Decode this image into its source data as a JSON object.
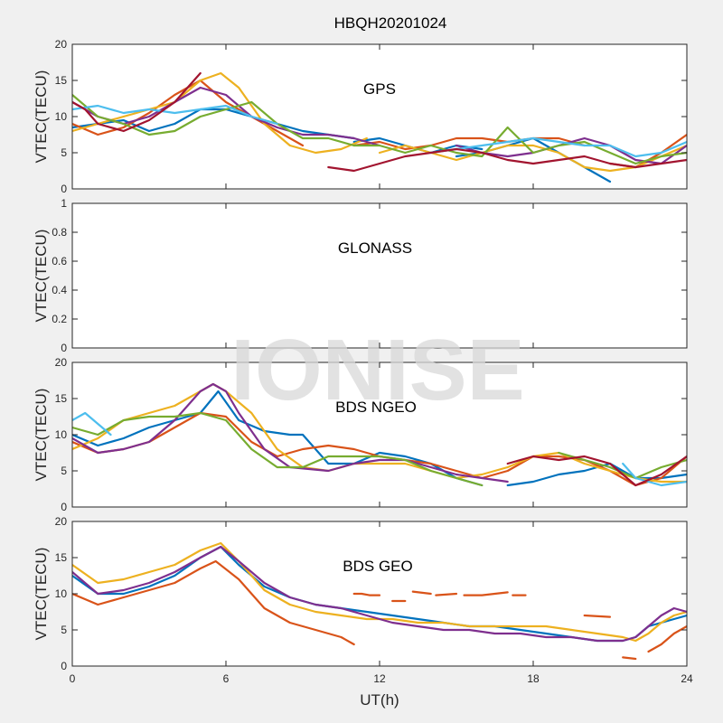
{
  "figure": {
    "title": "HBQH20201024",
    "xlabel": "UT(h)",
    "watermark": "IONISE",
    "colors": {
      "background": "#f0f0f0",
      "axes_bg": "#ffffff",
      "axis_line": "#262626",
      "series_palette": [
        "#0072bd",
        "#d95319",
        "#edb120",
        "#7e2f8e",
        "#77ac30",
        "#4dbeee",
        "#a2142f"
      ]
    }
  },
  "chart_data": [
    {
      "type": "line",
      "panel_label": "GPS",
      "ylabel": "VTEC(TECU)",
      "xlim": [
        0,
        24
      ],
      "ylim": [
        0,
        20
      ],
      "xticks": [
        0,
        6,
        12,
        18,
        24
      ],
      "yticks": [
        0,
        5,
        10,
        15,
        20
      ],
      "show_xtick_labels": false,
      "grid": false,
      "series": [
        {
          "color": "#0072bd",
          "x": [
            0,
            1,
            2,
            3,
            4,
            5,
            6,
            7,
            8,
            9,
            10,
            11
          ],
          "y": [
            8.5,
            9,
            9.5,
            8,
            9,
            11,
            11,
            10,
            9,
            8,
            7.5,
            7
          ]
        },
        {
          "color": "#0072bd",
          "x": [
            11,
            12,
            13,
            14,
            15,
            16
          ],
          "y": [
            6.5,
            7,
            6,
            5,
            6,
            5.5
          ]
        },
        {
          "color": "#0072bd",
          "x": [
            15,
            16,
            17,
            18,
            19,
            20,
            21
          ],
          "y": [
            4.5,
            5,
            6,
            7,
            5,
            3,
            1
          ]
        },
        {
          "color": "#d95319",
          "x": [
            0,
            1,
            2,
            3,
            4,
            5,
            6,
            7,
            8,
            9
          ],
          "y": [
            9,
            7.5,
            8.5,
            10.5,
            13,
            15,
            12,
            10,
            8,
            6
          ]
        },
        {
          "color": "#d95319",
          "x": [
            11,
            12,
            13,
            14,
            15,
            16,
            17,
            18,
            19,
            20
          ],
          "y": [
            6,
            6.5,
            5.5,
            6,
            7,
            7,
            6.5,
            7,
            7,
            6
          ]
        },
        {
          "color": "#d95319",
          "x": [
            21,
            22,
            23,
            24
          ],
          "y": [
            3.5,
            3,
            5,
            7.5
          ]
        },
        {
          "color": "#edb120",
          "x": [
            0,
            1,
            2,
            3,
            4,
            5,
            5.8,
            6.5,
            7.5,
            8.5,
            9.5,
            10.5,
            11.5
          ],
          "y": [
            8,
            9,
            10,
            11,
            12,
            15,
            16,
            14,
            9,
            6,
            5,
            5.5,
            7
          ]
        },
        {
          "color": "#edb120",
          "x": [
            12,
            13,
            14,
            15,
            16,
            17,
            18,
            19,
            20,
            21,
            22,
            23,
            24
          ],
          "y": [
            5,
            6,
            5,
            4,
            5,
            6,
            6,
            5,
            3,
            2.5,
            3,
            4.5,
            6
          ]
        },
        {
          "color": "#7e2f8e",
          "x": [
            0,
            1,
            2,
            3,
            4,
            5,
            6,
            7,
            8,
            9,
            10,
            11,
            12
          ],
          "y": [
            12,
            10,
            9,
            10,
            12,
            14,
            13,
            10,
            8.5,
            7.5,
            7.5,
            7,
            6
          ]
        },
        {
          "color": "#7e2f8e",
          "x": [
            15,
            16,
            17,
            18,
            19,
            20,
            21,
            22,
            23,
            24
          ],
          "y": [
            6,
            5,
            4.5,
            5,
            6,
            7,
            6,
            4,
            3.5,
            6
          ]
        },
        {
          "color": "#77ac30",
          "x": [
            0,
            1,
            2,
            3,
            4,
            5,
            6,
            7,
            8,
            9,
            10,
            11,
            12,
            13,
            14
          ],
          "y": [
            13,
            10,
            9,
            7.5,
            8,
            10,
            11,
            12,
            9,
            7,
            7,
            6,
            6,
            5,
            6
          ]
        },
        {
          "color": "#77ac30",
          "x": [
            14,
            15,
            16,
            17,
            18,
            19,
            20,
            21,
            22,
            23,
            24
          ],
          "y": [
            6,
            5,
            4.5,
            8.5,
            5,
            6,
            6.5,
            5,
            3.5,
            4.5,
            5
          ]
        },
        {
          "color": "#4dbeee",
          "x": [
            0,
            1,
            2,
            3,
            4,
            5,
            6,
            7,
            8
          ],
          "y": [
            11,
            11.5,
            10.5,
            11,
            10.5,
            11,
            11.5,
            10,
            9
          ]
        },
        {
          "color": "#4dbeee",
          "x": [
            14,
            15,
            16,
            17,
            18,
            19,
            20,
            21,
            22,
            23,
            24
          ],
          "y": [
            5,
            5.5,
            6,
            6.5,
            7,
            6.5,
            6,
            6,
            4.5,
            5,
            6.5
          ]
        },
        {
          "color": "#a2142f",
          "x": [
            0,
            0.5,
            1,
            2,
            3,
            4,
            4.5,
            5
          ],
          "y": [
            12,
            11,
            9,
            8,
            9.5,
            12,
            14,
            16
          ]
        },
        {
          "color": "#a2142f",
          "x": [
            10,
            11,
            12,
            13,
            14,
            15,
            16,
            17,
            18,
            19,
            20,
            21,
            22,
            23,
            24
          ],
          "y": [
            3,
            2.5,
            3.5,
            4.5,
            5,
            5.5,
            5,
            4,
            3.5,
            4,
            4.5,
            3.5,
            3,
            3.5,
            4
          ]
        }
      ]
    },
    {
      "type": "line",
      "panel_label": "GLONASS",
      "ylabel": "VTEC(TECU)",
      "xlim": [
        0,
        24
      ],
      "ylim": [
        0,
        1
      ],
      "xticks": [
        0,
        6,
        12,
        18,
        24
      ],
      "yticks": [
        0,
        0.2,
        0.4,
        0.6,
        0.8,
        1
      ],
      "show_xtick_labels": false,
      "grid": false,
      "series": []
    },
    {
      "type": "line",
      "panel_label": "BDS NGEO",
      "ylabel": "VTEC(TECU)",
      "xlim": [
        0,
        24
      ],
      "ylim": [
        0,
        20
      ],
      "xticks": [
        0,
        6,
        12,
        18,
        24
      ],
      "yticks": [
        0,
        5,
        10,
        15,
        20
      ],
      "show_xtick_labels": false,
      "grid": false,
      "series": [
        {
          "color": "#0072bd",
          "x": [
            0,
            1,
            2,
            3,
            4,
            5,
            5.7,
            6.5,
            7.5,
            8.5,
            9,
            10,
            11,
            12,
            13,
            14,
            15,
            16
          ],
          "y": [
            10,
            8.5,
            9.5,
            11,
            12,
            13,
            16,
            12,
            10.5,
            10,
            10,
            6,
            6,
            7.5,
            7,
            6,
            4,
            3
          ]
        },
        {
          "color": "#0072bd",
          "x": [
            17,
            18,
            19,
            20,
            21,
            22,
            23,
            24
          ],
          "y": [
            3,
            3.5,
            4.5,
            5,
            6,
            4,
            4,
            4.5
          ]
        },
        {
          "color": "#d95319",
          "x": [
            0,
            1,
            2,
            3,
            4,
            5,
            6,
            7,
            8,
            9,
            10,
            11,
            12,
            13,
            14,
            15,
            16,
            17,
            18,
            19,
            20,
            21,
            22,
            23,
            24
          ],
          "y": [
            9,
            7.5,
            8,
            9,
            11,
            13,
            12.5,
            9,
            7,
            8,
            8.5,
            8,
            7,
            6.5,
            6,
            5,
            4,
            5,
            7,
            7,
            6.5,
            5,
            3,
            4,
            7
          ]
        },
        {
          "color": "#edb120",
          "x": [
            0,
            1,
            2,
            3,
            4,
            5,
            5.5,
            6,
            7,
            8,
            9,
            10,
            11,
            12,
            13,
            14,
            15,
            16,
            17,
            18,
            19,
            20,
            21,
            22,
            23,
            24
          ],
          "y": [
            8,
            9.5,
            12,
            13,
            14,
            16,
            17,
            16,
            13,
            8,
            5.5,
            5,
            6,
            6,
            6,
            5,
            4,
            4.5,
            5.5,
            7,
            7.5,
            6,
            5,
            4,
            3.5,
            3.5
          ]
        },
        {
          "color": "#7e2f8e",
          "x": [
            0,
            1,
            2,
            3,
            4,
            5,
            5.5,
            6,
            6.5,
            7.5,
            8.5,
            10,
            11,
            12,
            13,
            14,
            15,
            16,
            17
          ],
          "y": [
            9.5,
            7.5,
            8,
            9,
            12,
            16,
            17,
            16,
            13,
            8,
            5.5,
            5,
            6,
            6.5,
            6.5,
            5.5,
            4.5,
            4,
            3.5
          ]
        },
        {
          "color": "#77ac30",
          "x": [
            0,
            1,
            2,
            3,
            4,
            5,
            6,
            7,
            8,
            9,
            10,
            11,
            12,
            13,
            14,
            15,
            16
          ],
          "y": [
            11,
            10,
            12,
            12.5,
            12.5,
            13,
            12,
            8,
            5.5,
            5.5,
            7,
            7,
            7,
            6.5,
            5,
            4,
            3
          ]
        },
        {
          "color": "#77ac30",
          "x": [
            19,
            20,
            21,
            22,
            23,
            24
          ],
          "y": [
            7.5,
            6.5,
            5.5,
            4,
            5.5,
            6.5
          ]
        },
        {
          "color": "#4dbeee",
          "x": [
            0,
            0.5,
            1,
            1.5
          ],
          "y": [
            12,
            13,
            11.5,
            10
          ]
        },
        {
          "color": "#4dbeee",
          "x": [
            21.5,
            22,
            23,
            24
          ],
          "y": [
            6,
            4,
            3,
            3.5
          ]
        },
        {
          "color": "#a2142f",
          "x": [
            17,
            18,
            19,
            20,
            21,
            22,
            23,
            24
          ],
          "y": [
            6,
            7,
            6.5,
            7,
            6,
            3,
            4.5,
            7
          ]
        }
      ]
    },
    {
      "type": "line",
      "panel_label": "BDS GEO",
      "ylabel": "VTEC(TECU)",
      "xlim": [
        0,
        24
      ],
      "ylim": [
        0,
        20
      ],
      "xticks": [
        0,
        6,
        12,
        18,
        24
      ],
      "yticks": [
        0,
        5,
        10,
        15,
        20
      ],
      "show_xtick_labels": true,
      "grid": false,
      "series": [
        {
          "color": "#0072bd",
          "x": [
            0,
            1,
            2,
            3,
            4,
            5,
            5.8,
            6.5,
            7.5,
            8.5,
            9.5,
            10.5,
            11.5,
            12.5,
            13.5,
            14.5,
            15.5,
            16.5,
            17.5,
            18.5,
            19.5,
            20.5,
            21.5,
            22,
            22.5,
            23,
            23.5,
            24
          ],
          "y": [
            12.5,
            10,
            10,
            11,
            12.5,
            15,
            16.5,
            14,
            11,
            9.5,
            8.5,
            8,
            7.5,
            7,
            6.5,
            6,
            5.5,
            5.5,
            5,
            4.5,
            4,
            3.5,
            3.5,
            4,
            5.5,
            6,
            6.5,
            7
          ]
        },
        {
          "color": "#d95319",
          "x": [
            0,
            1,
            2,
            3,
            4,
            5,
            5.6,
            6.5,
            7.5,
            8.5,
            9.5,
            10.5,
            11
          ],
          "y": [
            10,
            8.5,
            9.5,
            10.5,
            11.5,
            13.5,
            14.5,
            12,
            8,
            6,
            5,
            4,
            3
          ]
        },
        {
          "color": "#d95319",
          "x": [
            11,
            11.3,
            11.6,
            12
          ],
          "y": [
            10,
            10,
            9.8,
            9.8
          ]
        },
        {
          "color": "#d95319",
          "x": [
            12.5,
            13
          ],
          "y": [
            9,
            9
          ]
        },
        {
          "color": "#d95319",
          "x": [
            13.3,
            14
          ],
          "y": [
            10.3,
            10
          ]
        },
        {
          "color": "#d95319",
          "x": [
            14.2,
            15
          ],
          "y": [
            9.8,
            10
          ]
        },
        {
          "color": "#d95319",
          "x": [
            15.3,
            16,
            16.5,
            17
          ],
          "y": [
            9.8,
            9.8,
            10,
            10.2
          ]
        },
        {
          "color": "#d95319",
          "x": [
            17.2,
            17.7
          ],
          "y": [
            9.8,
            9.8
          ]
        },
        {
          "color": "#d95319",
          "x": [
            20,
            21
          ],
          "y": [
            7,
            6.8
          ]
        },
        {
          "color": "#d95319",
          "x": [
            21.5,
            22
          ],
          "y": [
            1.2,
            1
          ]
        },
        {
          "color": "#d95319",
          "x": [
            22.5,
            23,
            23.5,
            24
          ],
          "y": [
            2,
            3,
            4.5,
            5.5
          ]
        },
        {
          "color": "#edb120",
          "x": [
            0,
            1,
            2,
            3,
            4,
            5,
            5.8,
            6.5,
            7.5,
            8.5,
            9.5,
            10.5,
            11.5,
            12.5,
            13.5,
            14.5,
            15.5,
            16.5,
            17.5,
            18.5,
            19.5,
            20.5,
            21.5,
            22,
            22.5,
            23,
            23.5,
            24
          ],
          "y": [
            14,
            11.5,
            12,
            13,
            14,
            16,
            17,
            14.5,
            10.5,
            8.5,
            7.5,
            7,
            6.5,
            6.5,
            6,
            6,
            5.5,
            5.5,
            5.5,
            5.5,
            5,
            4.5,
            4,
            3.5,
            4.5,
            6,
            7,
            7.5
          ]
        },
        {
          "color": "#7e2f8e",
          "x": [
            0,
            1,
            2,
            3,
            4,
            5,
            5.8,
            6.5,
            7.5,
            8.5,
            9.5,
            10.5,
            11.5,
            12.5,
            13.5,
            14.5,
            15.5,
            16.5,
            17.5,
            18.5,
            19.5,
            20.5,
            21.5,
            22,
            22.5,
            23,
            23.5,
            24
          ],
          "y": [
            13,
            10,
            10.5,
            11.5,
            13,
            15,
            16.5,
            14.5,
            11.5,
            9.5,
            8.5,
            8,
            7,
            6,
            5.5,
            5,
            5,
            4.5,
            4.5,
            4,
            4,
            3.5,
            3.5,
            4,
            5.5,
            7,
            8,
            7.5
          ]
        }
      ]
    }
  ]
}
